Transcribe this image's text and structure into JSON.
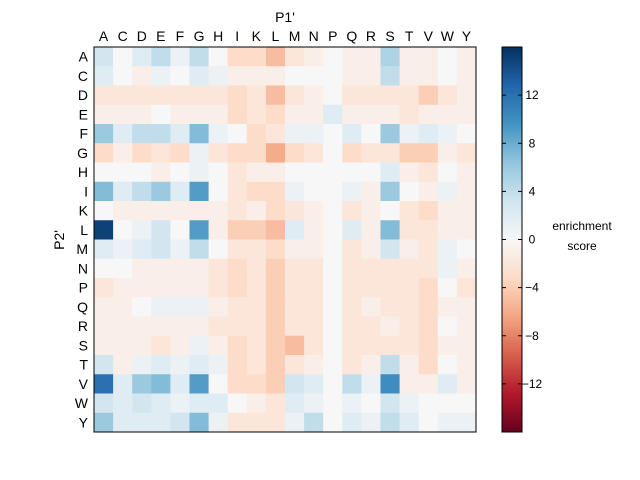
{
  "chart_data": {
    "type": "heatmap",
    "xlabel": "P1'",
    "ylabel": "P2'",
    "x_categories": [
      "A",
      "C",
      "D",
      "E",
      "F",
      "G",
      "H",
      "I",
      "K",
      "L",
      "M",
      "N",
      "P",
      "Q",
      "R",
      "S",
      "T",
      "V",
      "W",
      "Y"
    ],
    "y_categories": [
      "A",
      "C",
      "D",
      "E",
      "F",
      "G",
      "H",
      "I",
      "K",
      "L",
      "M",
      "N",
      "P",
      "Q",
      "R",
      "S",
      "T",
      "V",
      "W",
      "Y"
    ],
    "values": [
      [
        3,
        0,
        2,
        4,
        1,
        4,
        0,
        -3,
        -3,
        -5,
        -2,
        -1,
        0,
        -1,
        -1,
        5,
        -1,
        -1,
        0,
        -1
      ],
      [
        2,
        0,
        -1,
        1,
        0,
        2,
        1,
        -1,
        -1,
        -1,
        0,
        0,
        0,
        -1,
        -1,
        4,
        -1,
        -1,
        0,
        -1
      ],
      [
        -2,
        -2,
        -2,
        -2,
        -2,
        -2,
        -2,
        -3,
        -2,
        -5,
        -2,
        -1,
        0,
        -2,
        -2,
        -2,
        -2,
        -4,
        -2,
        -1
      ],
      [
        -1,
        -1,
        -1,
        0,
        -1,
        -1,
        -1,
        -3,
        -2,
        -3,
        -1,
        -1,
        2,
        -1,
        -1,
        -1,
        -2,
        -1,
        -1,
        -1
      ],
      [
        6,
        2,
        4,
        4,
        2,
        7,
        1,
        0,
        -3,
        -2,
        1,
        1,
        0,
        2,
        0,
        6,
        1,
        2,
        1,
        0
      ],
      [
        -3,
        -1,
        -3,
        -2,
        -3,
        1,
        -2,
        -3,
        -3,
        -6,
        -3,
        -2,
        0,
        -3,
        -2,
        -2,
        -4,
        -4,
        -1,
        -2
      ],
      [
        0,
        0,
        0,
        -1,
        0,
        1,
        0,
        -2,
        -1,
        -1,
        0,
        0,
        0,
        0,
        0,
        2,
        -1,
        -2,
        0,
        -1
      ],
      [
        7,
        2,
        4,
        6,
        2,
        9,
        0,
        -2,
        -3,
        -3,
        1,
        0,
        0,
        1,
        -1,
        6,
        0,
        -1,
        1,
        -1
      ],
      [
        0,
        -1,
        -1,
        -1,
        -1,
        -1,
        -1,
        -2,
        -1,
        -3,
        -2,
        -1,
        0,
        -2,
        -1,
        0,
        -2,
        -3,
        -1,
        -1
      ],
      [
        15,
        0,
        1,
        3,
        0,
        9,
        -1,
        -4,
        -4,
        -5,
        2,
        -1,
        0,
        2,
        -1,
        7,
        -2,
        -2,
        -1,
        -1
      ],
      [
        2,
        1,
        2,
        3,
        1,
        4,
        0,
        -2,
        -2,
        -3,
        -1,
        -1,
        0,
        -2,
        -1,
        3,
        -1,
        -2,
        1,
        0
      ],
      [
        0,
        0,
        -1,
        -1,
        -1,
        -1,
        -2,
        -3,
        -2,
        -4,
        -2,
        -2,
        0,
        -2,
        -2,
        -2,
        -2,
        -2,
        1,
        -1
      ],
      [
        -2,
        -1,
        -1,
        -1,
        -1,
        -1,
        -2,
        -3,
        -2,
        -4,
        -2,
        -2,
        0,
        -2,
        -2,
        -2,
        -2,
        -3,
        0,
        -2
      ],
      [
        -1,
        -1,
        0,
        1,
        1,
        1,
        -1,
        -2,
        -2,
        -4,
        -2,
        -2,
        0,
        -2,
        -1,
        -2,
        -2,
        -3,
        -1,
        -1
      ],
      [
        -1,
        -1,
        -1,
        -1,
        -1,
        -1,
        -2,
        -2,
        -2,
        -4,
        -2,
        -2,
        0,
        -2,
        -2,
        -1,
        -2,
        -3,
        0,
        -1
      ],
      [
        -1,
        -1,
        -1,
        -2,
        -1,
        1,
        -1,
        -3,
        -2,
        -4,
        -5,
        -2,
        0,
        -2,
        -2,
        -2,
        -2,
        -3,
        -1,
        -1
      ],
      [
        3,
        -1,
        1,
        2,
        1,
        2,
        1,
        -3,
        -2,
        -4,
        -2,
        -1,
        0,
        -2,
        -1,
        4,
        -1,
        -3,
        0,
        -1
      ],
      [
        12,
        2,
        6,
        7,
        2,
        9,
        0,
        -3,
        -3,
        -4,
        3,
        2,
        0,
        4,
        1,
        10,
        -1,
        -1,
        2,
        -1
      ],
      [
        3,
        2,
        3,
        2,
        1,
        2,
        2,
        0,
        -1,
        -2,
        2,
        1,
        0,
        1,
        0,
        3,
        1,
        0,
        0,
        0
      ],
      [
        6,
        2,
        2,
        2,
        3,
        7,
        1,
        -2,
        -2,
        -2,
        1,
        4,
        0,
        2,
        1,
        4,
        2,
        0,
        1,
        1
      ]
    ],
    "colorbar": {
      "label_line1": "enrichment",
      "label_line2": "score",
      "ticks": [
        -12,
        -8,
        -4,
        0,
        4,
        8,
        12
      ],
      "tick_labels": [
        "−12",
        "−8",
        "−4",
        "0",
        "4",
        "8",
        "12"
      ],
      "vmin": -16,
      "vmax": 16,
      "cmap": "RdBu"
    }
  }
}
